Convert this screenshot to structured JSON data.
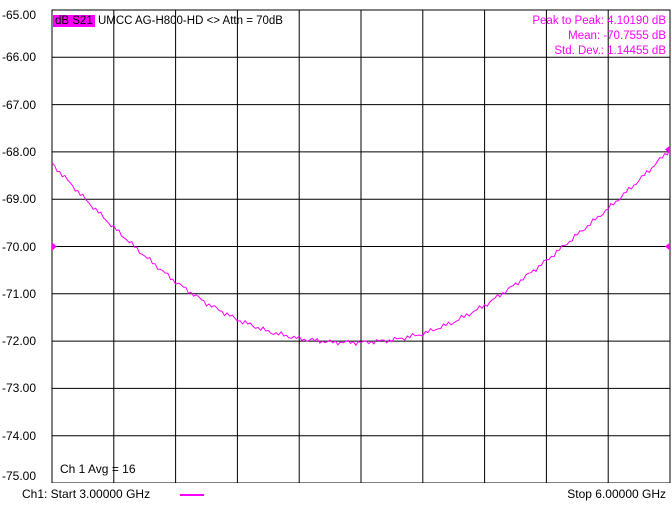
{
  "trace": {
    "badge": "dB S21",
    "title": "UMCC  AG-H800-HD <> Attn = 70dB"
  },
  "stats": {
    "peak_to_peak": "Peak to Peak:  4.10190 dB",
    "mean": "Mean:  -70.7555 dB",
    "std_dev": "Std. Dev.:  1.14455 dB"
  },
  "avg_label": "Ch 1 Avg =   16",
  "footer": {
    "start": "Ch1: Start  3.00000 GHz",
    "stop": "Stop  6.00000 GHz"
  },
  "colors": {
    "trace": "#ff00ff",
    "grid": "#000000",
    "background": "#ffffff"
  },
  "chart_data": {
    "type": "line",
    "title": "",
    "xlabel": "",
    "ylabel": "",
    "xlim": [
      3.0,
      6.0
    ],
    "x_unit": "GHz",
    "ylim": [
      -75.0,
      -65.0
    ],
    "y_unit": "dB",
    "y_ticks": [
      "-65.00",
      "-66.00",
      "-67.00",
      "-68.00",
      "-69.00",
      "-70.00",
      "-71.00",
      "-72.00",
      "-73.00",
      "-74.00",
      "-75.00"
    ],
    "grid": true,
    "x_divisions": 10,
    "reference_level": -70.0,
    "series": [
      {
        "x": [
          3.0,
          3.15,
          3.3,
          3.45,
          3.6,
          3.75,
          3.9,
          4.05,
          4.2,
          4.35,
          4.5,
          4.65,
          4.8,
          4.95,
          5.1,
          5.25,
          5.4,
          5.55,
          5.7,
          5.85,
          6.0
        ],
        "values": [
          -68.25,
          -68.95,
          -69.6,
          -70.2,
          -70.75,
          -71.2,
          -71.55,
          -71.8,
          -71.95,
          -72.02,
          -72.03,
          -71.98,
          -71.85,
          -71.6,
          -71.25,
          -70.8,
          -70.3,
          -69.75,
          -69.2,
          -68.6,
          -67.95
        ]
      }
    ]
  }
}
